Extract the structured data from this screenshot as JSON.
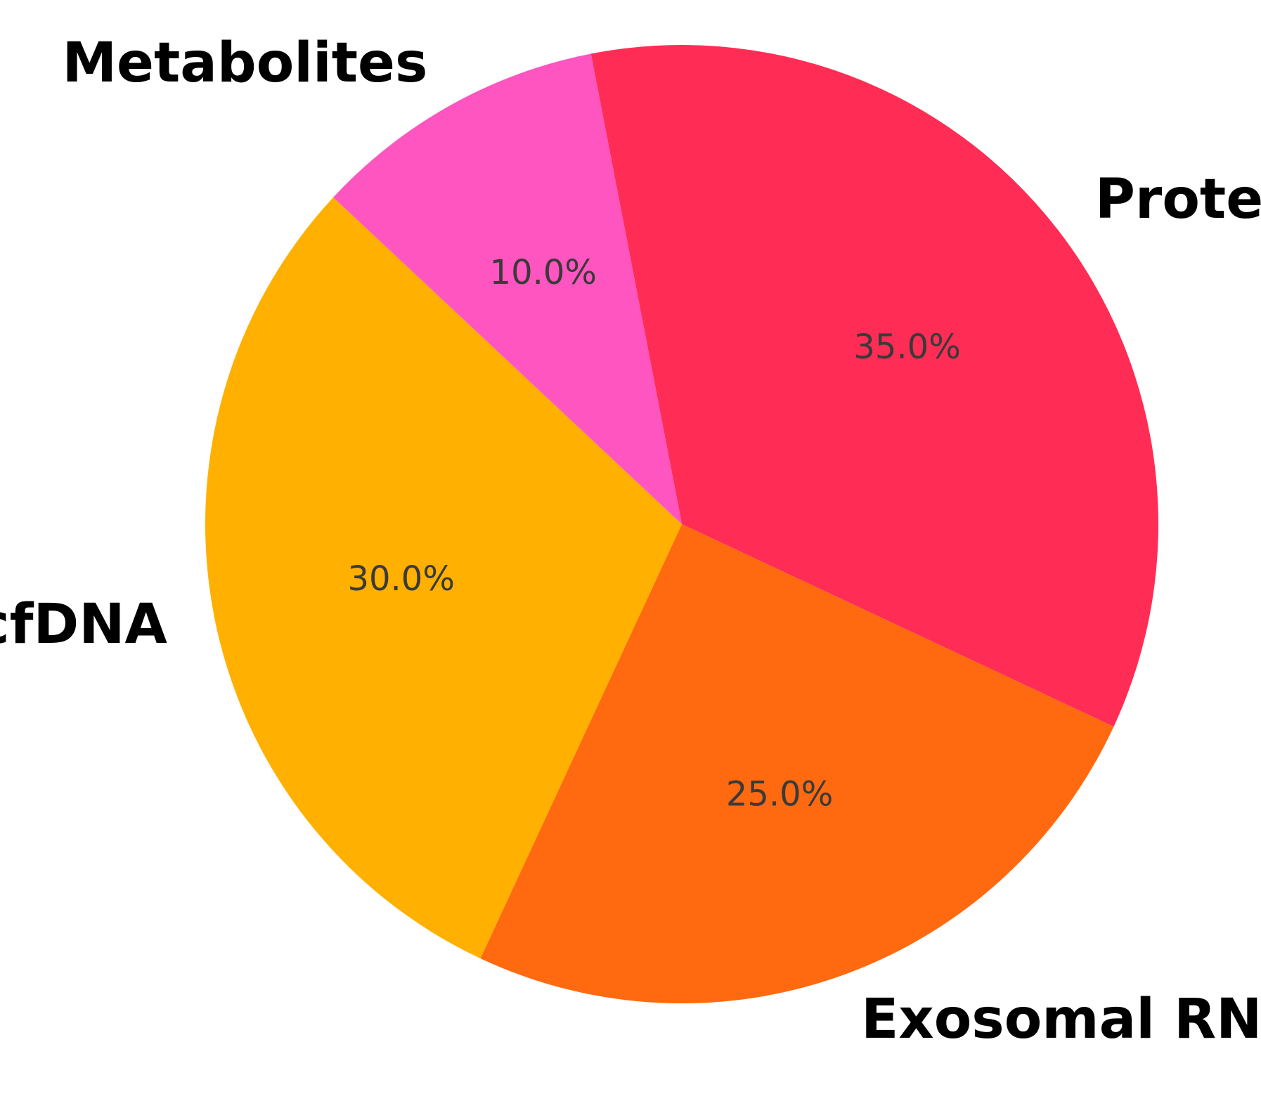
{
  "chart_data": {
    "type": "pie",
    "title": "",
    "autopct_format": "%.1f%%",
    "slices": [
      {
        "label": "Proteins",
        "value": 35.0,
        "pct_label": "35.0%",
        "color": "#FF2D55"
      },
      {
        "label": "Exosomal RNA",
        "value": 25.0,
        "pct_label": "25.0%",
        "color": "#FF6A10"
      },
      {
        "label": "cfDNA",
        "value": 30.0,
        "pct_label": "30.0%",
        "color": "#FFB000"
      },
      {
        "label": "Metabolites",
        "value": 10.0,
        "pct_label": "10.0%",
        "color": "#FF55C0"
      }
    ],
    "legend": "none"
  }
}
